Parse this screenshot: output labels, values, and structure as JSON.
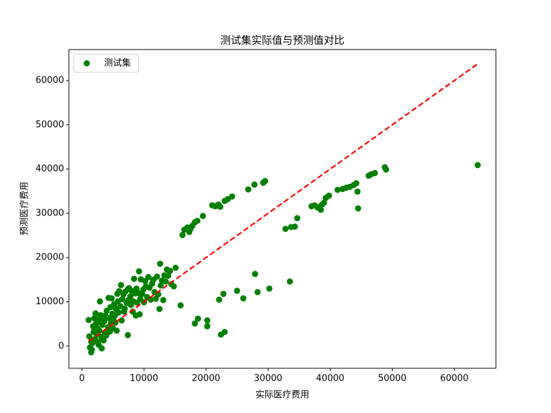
{
  "chart_data": {
    "type": "scatter",
    "title": "测试集实际值与预测值对比",
    "xlabel": "实际医疗费用",
    "ylabel": "预测医疗费用",
    "xlim": [
      -2100,
      66700
    ],
    "ylim": [
      -5000,
      67000
    ],
    "xticks": [
      0,
      10000,
      20000,
      30000,
      40000,
      50000,
      60000
    ],
    "yticks": [
      0,
      10000,
      20000,
      30000,
      40000,
      50000,
      60000
    ],
    "legend": "upper left",
    "reference_line": {
      "color": "#ff0000",
      "x": [
        1122,
        63770
      ],
      "values": [
        1122,
        63770
      ]
    },
    "series": [
      {
        "name": "测试集",
        "color": "#008000",
        "x": [
          16200,
          16500,
          17000,
          17300,
          17800,
          18200,
          18600,
          19500,
          21000,
          21500,
          22000,
          22300,
          23000,
          23500,
          24200,
          26800,
          27800,
          29200,
          29500,
          17500,
          32800,
          33700,
          34300,
          34700,
          37000,
          37500,
          38000,
          38300,
          38500,
          38700,
          39000,
          39300,
          39800,
          41200,
          42000,
          42600,
          43200,
          43800,
          44200,
          44400,
          44500,
          46200,
          46600,
          47200,
          48800,
          49000,
          63770,
          15900,
          18200,
          18700,
          20200,
          20200,
          22100,
          22400,
          23000,
          22800,
          25000,
          26000,
          27900,
          28300,
          30200,
          33500,
          7400,
          1100,
          1200,
          1300,
          1500,
          1600,
          1700,
          1800,
          1900,
          2000,
          2100,
          2200,
          2300,
          2400,
          2500,
          2600,
          2700,
          2800,
          2900,
          3000,
          3100,
          3200,
          3300,
          3400,
          3500,
          3600,
          3700,
          3800,
          3900,
          4000,
          4200,
          4300,
          4400,
          4500,
          4600,
          4700,
          4800,
          4900,
          5000,
          5200,
          5300,
          5400,
          5500,
          5600,
          5700,
          5800,
          5900,
          6000,
          6200,
          6300,
          6400,
          6500,
          6700,
          6900,
          7000,
          7200,
          7400,
          7500,
          7600,
          7800,
          7900,
          8000,
          8200,
          8300,
          8400,
          8600,
          8700,
          8900,
          9100,
          9200,
          9300,
          9400,
          9500,
          9700,
          9900,
          10000,
          10300,
          10500,
          10700,
          10900,
          11100,
          11300,
          11500,
          11700,
          11900,
          12100,
          12300,
          12500,
          12600,
          12700,
          12900,
          13100,
          13300,
          13500,
          13700,
          13900,
          14200,
          14400,
          15100,
          14800,
          6800,
          4100,
          5100,
          3000,
          2000,
          1500,
          2700,
          8800,
          10200
        ],
        "values": [
          25100,
          26300,
          26800,
          25800,
          27200,
          28000,
          28300,
          29400,
          31800,
          31600,
          32000,
          31500,
          32800,
          33200,
          33800,
          35400,
          36500,
          36900,
          37300,
          26500,
          26500,
          26900,
          27000,
          28900,
          31600,
          31800,
          31300,
          31500,
          30800,
          32000,
          32400,
          33500,
          34000,
          35300,
          35500,
          35800,
          36000,
          36400,
          36800,
          34900,
          31100,
          38500,
          38800,
          39100,
          40400,
          39900,
          40900,
          9200,
          5100,
          6200,
          5800,
          4500,
          10500,
          2600,
          3200,
          11800,
          12500,
          10800,
          16300,
          12200,
          13000,
          14600,
          2500,
          5900,
          2200,
          -300,
          -1400,
          -800,
          700,
          4500,
          3200,
          6300,
          1600,
          7400,
          5100,
          2700,
          4000,
          900,
          6100,
          3500,
          10100,
          7000,
          2100,
          -500,
          4800,
          6600,
          1300,
          5600,
          3000,
          6900,
          2400,
          8000,
          4300,
          10900,
          6300,
          3300,
          8800,
          5300,
          10800,
          7300,
          4000,
          9500,
          6900,
          5300,
          8400,
          3500,
          11800,
          10100,
          7600,
          12400,
          9000,
          13800,
          5800,
          10600,
          11700,
          8500,
          12300,
          9800,
          12900,
          10400,
          13100,
          11200,
          9300,
          12500,
          7800,
          10100,
          15200,
          11900,
          6900,
          9800,
          12000,
          16900,
          7200,
          10700,
          15100,
          11800,
          12800,
          9900,
          13500,
          11100,
          15600,
          13200,
          10500,
          14100,
          15000,
          12200,
          10700,
          15700,
          11700,
          8400,
          18600,
          13700,
          14800,
          10400,
          16000,
          14600,
          17300,
          15900,
          17000,
          14000,
          17700,
          13500,
          7800,
          3000,
          6000,
          5500,
          3800,
          1000,
          300,
          13000,
          14700
        ]
      }
    ]
  }
}
